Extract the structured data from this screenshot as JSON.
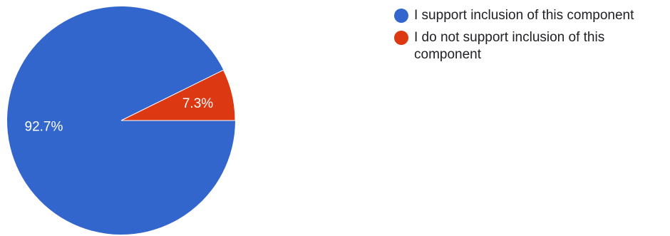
{
  "chart_data": {
    "type": "pie",
    "title": "",
    "slices": [
      {
        "label": "I support inclusion of this component",
        "value": 92.7,
        "display": "92.7%",
        "color": "#3366cc"
      },
      {
        "label": "I do not support inclusion of this component",
        "value": 7.3,
        "display": "7.3%",
        "color": "#dc3912"
      }
    ],
    "legend_position": "right"
  }
}
